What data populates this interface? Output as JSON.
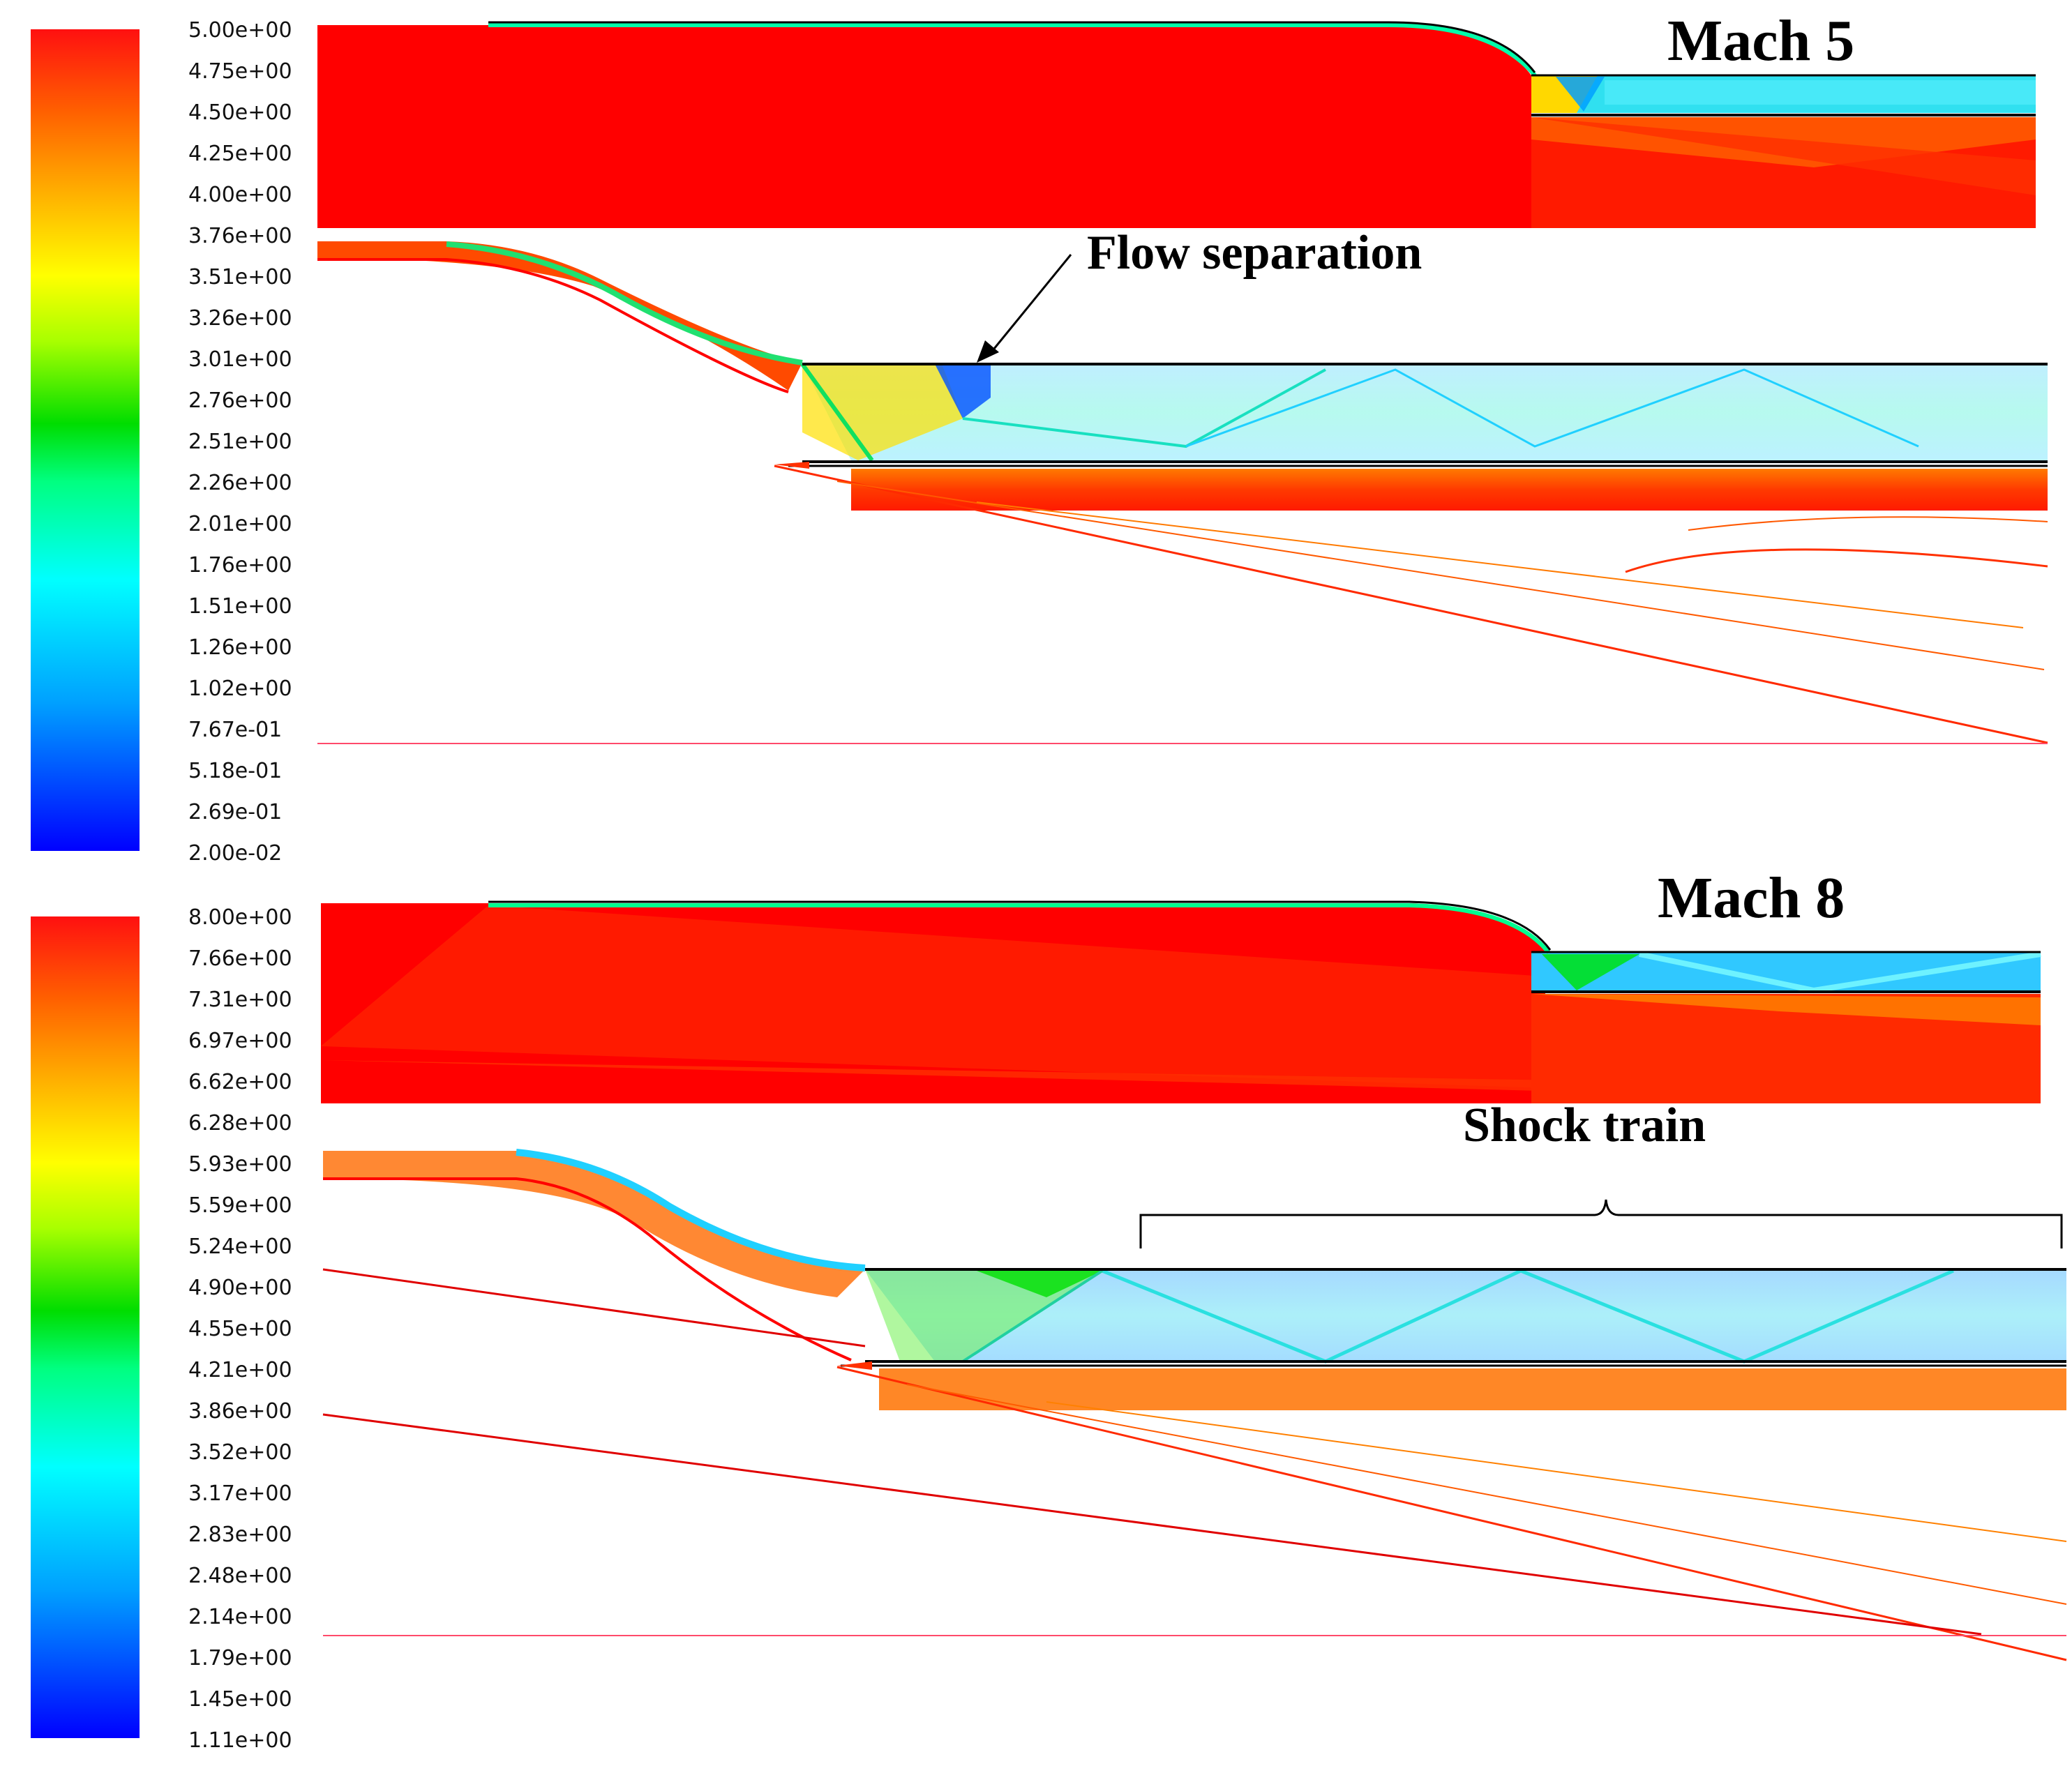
{
  "panels": [
    {
      "title": "Mach 5",
      "annotation": "Flow separation",
      "colorbar_ticks": [
        "5.00e+00",
        "4.75e+00",
        "4.50e+00",
        "4.25e+00",
        "4.00e+00",
        "3.76e+00",
        "3.51e+00",
        "3.26e+00",
        "3.01e+00",
        "2.76e+00",
        "2.51e+00",
        "2.26e+00",
        "2.01e+00",
        "1.76e+00",
        "1.51e+00",
        "1.26e+00",
        "1.02e+00",
        "7.67e-01",
        "5.18e-01",
        "2.69e-01",
        "2.00e-02"
      ],
      "colorbar_range": [
        0.02,
        5.0
      ]
    },
    {
      "title": "Mach 8",
      "annotation": "Shock train",
      "colorbar_ticks": [
        "8.00e+00",
        "7.66e+00",
        "7.31e+00",
        "6.97e+00",
        "6.62e+00",
        "6.28e+00",
        "5.93e+00",
        "5.59e+00",
        "5.24e+00",
        "4.90e+00",
        "4.55e+00",
        "4.21e+00",
        "3.86e+00",
        "3.52e+00",
        "3.17e+00",
        "2.83e+00",
        "2.48e+00",
        "2.14e+00",
        "1.79e+00",
        "1.45e+00",
        "1.11e+00"
      ],
      "colorbar_range": [
        1.11,
        8.0
      ]
    }
  ],
  "colormap": [
    "#0000ff",
    "#00a0ff",
    "#00ffff",
    "#00ff60",
    "#00e000",
    "#a0ff00",
    "#ffff00",
    "#ffb000",
    "#ff6000",
    "#ff0000"
  ]
}
